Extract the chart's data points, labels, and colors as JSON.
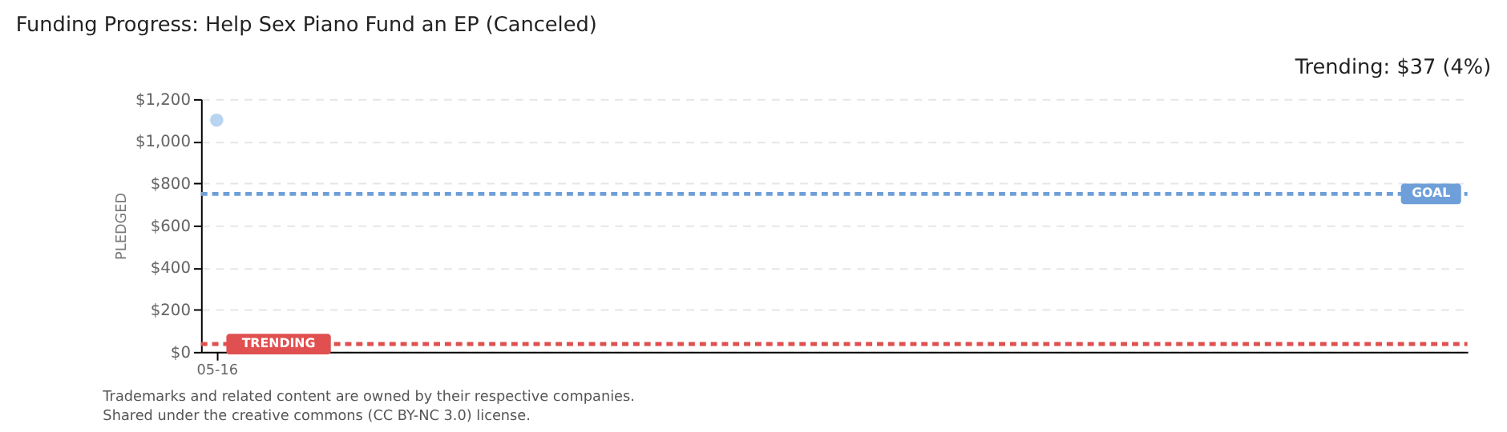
{
  "chart_data": {
    "type": "scatter",
    "title": "Funding Progress: Help Sex Piano Fund an EP (Canceled)",
    "ylabel": "PLEDGED",
    "categories": [
      "05-16"
    ],
    "series": [
      {
        "color": "#b8d4f0",
        "values": [
          1100
        ]
      }
    ],
    "marker": "circle",
    "ylim": [
      0,
      1200
    ],
    "yticks": [
      {
        "value": 0,
        "label": "$0"
      },
      {
        "value": 200,
        "label": "$200"
      },
      {
        "value": 400,
        "label": "$400"
      },
      {
        "value": 600,
        "label": "$600"
      },
      {
        "value": 800,
        "label": "$800"
      },
      {
        "value": 1000,
        "label": "$1,000"
      },
      {
        "value": 1200,
        "label": "$1,200"
      }
    ],
    "grid": "y",
    "legend": false,
    "ref_lines": [
      {
        "axis": "y",
        "value": 750,
        "label": "GOAL",
        "color": "#6f9fd8",
        "line_style": "dashed"
      },
      {
        "axis": "y",
        "value": 37,
        "label": "TRENDING",
        "color": "#e05050",
        "line_style": "dashed"
      }
    ],
    "annotations": [
      "Trending: $37 (4%)",
      "Trademarks and related content are owned by their respective companies.",
      "Shared under the creative commons (CC BY-NC 3.0) license."
    ]
  }
}
